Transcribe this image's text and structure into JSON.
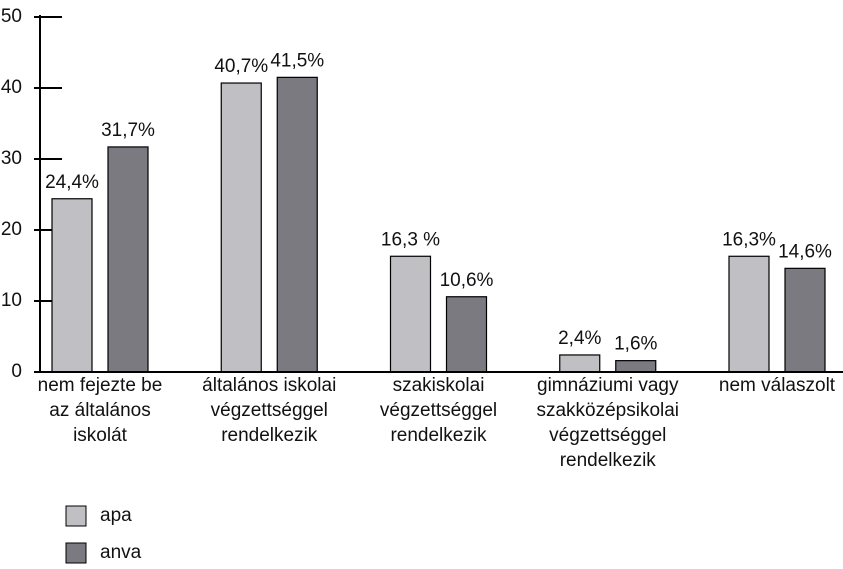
{
  "chart_data": {
    "type": "bar",
    "categories": [
      [
        "nem fejezte be",
        "az általános",
        "iskolát"
      ],
      [
        "általános iskolai",
        "végzettséggel",
        "rendelkezik"
      ],
      [
        "szakiskolai",
        "végzettséggel",
        "rendelkezik"
      ],
      [
        "gimnáziumi vagy",
        "szakközépsikolai",
        "végzettséggel",
        "rendelkezik"
      ],
      [
        "nem válaszolt"
      ]
    ],
    "series": [
      {
        "name": "apa",
        "color": "#c0c0c4",
        "values": [
          24.4,
          40.7,
          16.3,
          2.4,
          16.3
        ],
        "value_labels": [
          "24,4%",
          "40,7%",
          "16,3 %",
          "2,4%",
          "16,3%"
        ]
      },
      {
        "name": "anva",
        "color": "#7a7a80",
        "values": [
          31.7,
          41.5,
          10.6,
          1.6,
          14.6
        ],
        "value_labels": [
          "31,7%",
          "41,5%",
          "10,6%",
          "1,6%",
          "14,6%"
        ]
      }
    ],
    "ylim": [
      0,
      50
    ],
    "yticks": [
      0,
      10,
      20,
      30,
      40,
      50
    ]
  }
}
